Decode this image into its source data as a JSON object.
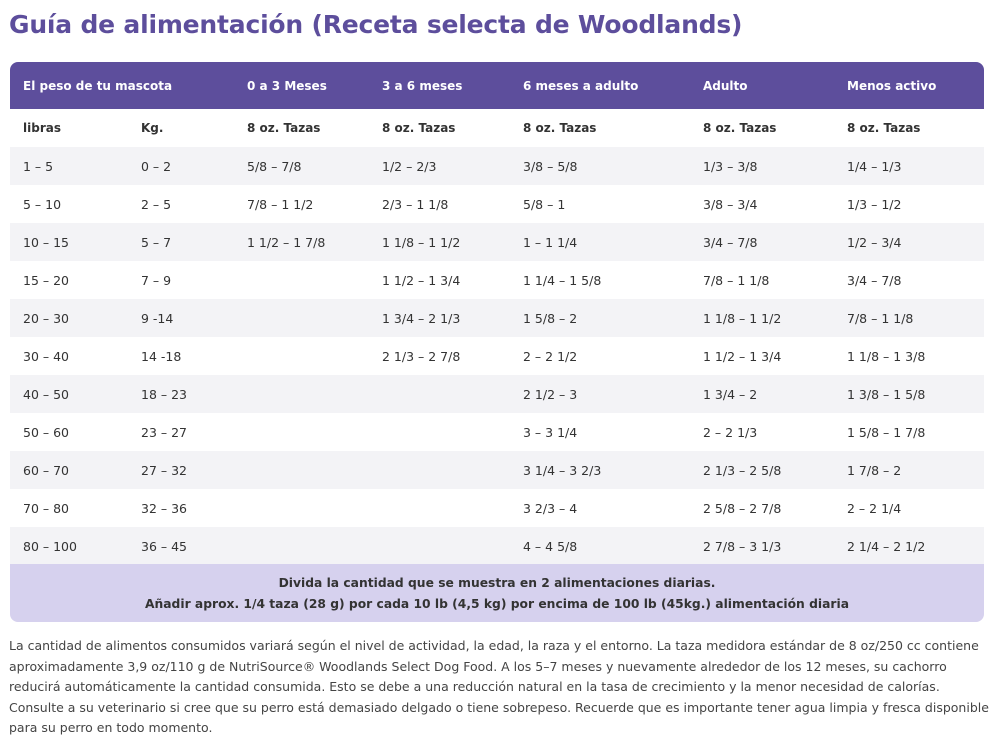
{
  "title": "Guía de alimentación (Receta selecta de Woodlands)",
  "table": {
    "headers": [
      "El peso de tu mascota",
      "",
      "0 a 3 Meses",
      "3 a 6 meses",
      "6 meses a adulto",
      "Adulto",
      "Menos activo"
    ],
    "subheaders": [
      "libras",
      "Kg.",
      "8 oz. Tazas",
      "8 oz. Tazas",
      "8 oz. Tazas",
      "8 oz. Tazas",
      "8 oz. Tazas"
    ],
    "rows": [
      [
        "1 – 5",
        "0 – 2",
        "5/8 – 7/8",
        "1/2 – 2/3",
        "3/8 – 5/8",
        "1/3 – 3/8",
        "1/4 – 1/3"
      ],
      [
        "5 – 10",
        "2 – 5",
        "7/8 – 1 1/2",
        "2/3 – 1 1/8",
        "5/8 – 1",
        "3/8 – 3/4",
        "1/3 – 1/2"
      ],
      [
        "10 – 15",
        "5 – 7",
        "1 1/2 – 1 7/8",
        "1 1/8 – 1 1/2",
        "1 – 1 1/4",
        "3/4 – 7/8",
        "1/2 – 3/4"
      ],
      [
        "15 – 20",
        "7 – 9",
        "",
        "1 1/2 – 1 3/4",
        "1 1/4 – 1 5/8",
        "7/8 – 1 1/8",
        "3/4 – 7/8"
      ],
      [
        "20 – 30",
        "9 -14",
        "",
        "1 3/4 – 2 1/3",
        "1 5/8 – 2",
        "1 1/8 – 1 1/2",
        "7/8 – 1 1/8"
      ],
      [
        "30 – 40",
        "14 -18",
        "",
        "2 1/3 – 2 7/8",
        "2 – 2 1/2",
        "1 1/2 – 1 3/4",
        "1 1/8 – 1 3/8"
      ],
      [
        "40 – 50",
        "18 – 23",
        "",
        "",
        "2 1/2 – 3",
        "1 3/4 – 2",
        "1 3/8 – 1 5/8"
      ],
      [
        "50 – 60",
        "23 – 27",
        "",
        "",
        "3 – 3 1/4",
        "2 – 2 1/3",
        "1 5/8 – 1 7/8"
      ],
      [
        "60 – 70",
        "27 – 32",
        "",
        "",
        "3 1/4 – 3 2/3",
        "2 1/3 – 2 5/8",
        "1 7/8 – 2"
      ],
      [
        "70 – 80",
        "32 – 36",
        "",
        "",
        "3 2/3 – 4",
        "2 5/8 – 2 7/8",
        "2 – 2 1/4"
      ],
      [
        "80 – 100",
        "36 – 45",
        "",
        "",
        "4 – 4 5/8",
        "2 7/8 – 3 1/3",
        "2 1/4 – 2 1/2"
      ]
    ],
    "footer_line1": "Divida la cantidad que se muestra en 2 alimentaciones diarias.",
    "footer_line2": "Añadir aprox. 1/4 taza (28 g) por cada 10 lb (4,5 kg) por encima de 100 lb (45kg.) alimentación diaria"
  },
  "notes": "La cantidad de alimentos consumidos variará según el nivel de actividad, la edad, la raza y el entorno. La taza medidora estándar de 8 oz/250 cc contiene aproximadamente 3,9 oz/110 g de NutriSource® Woodlands Select Dog Food. A los 5–7 meses y nuevamente alrededor de los 12 meses, su cachorro reducirá automáticamente la cantidad consumida. Esto se debe a una reducción natural en la tasa de crecimiento y la menor necesidad de calorías. Consulte a su veterinario si cree que su perro está demasiado delgado o tiene sobrepeso. Recuerde que es importante tener agua limpia y fresca disponible para su perro en todo momento."
}
